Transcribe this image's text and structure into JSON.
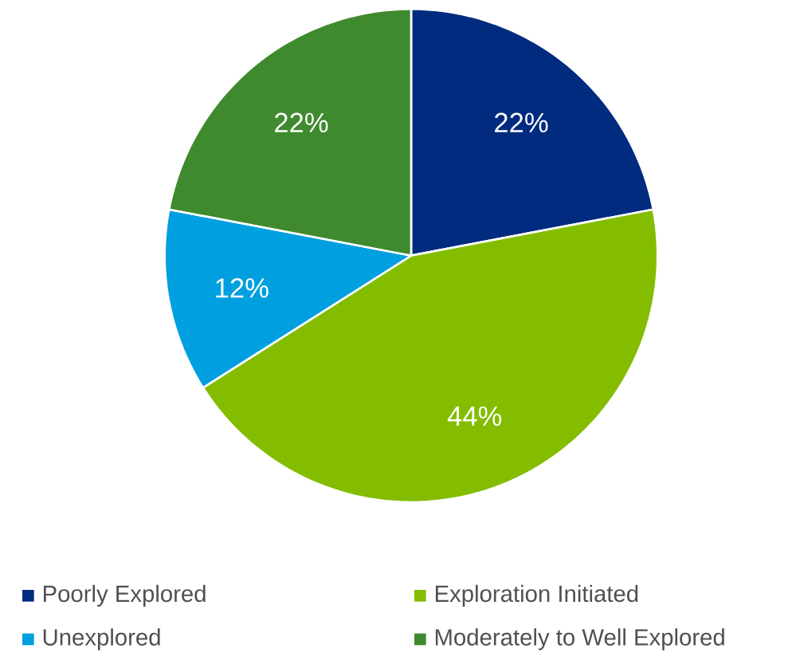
{
  "chart_data": {
    "type": "pie",
    "categories": [
      "Poorly Explored",
      "Exploration Initiated",
      "Unexplored",
      "Moderately to Well Explored"
    ],
    "values": [
      22,
      44,
      12,
      22
    ],
    "colors": [
      "#002b7f",
      "#84bd00",
      "#009fdf",
      "#3f8a2e"
    ],
    "value_labels": [
      "22%",
      "44%",
      "12%",
      "22%"
    ],
    "legend": "bottom"
  }
}
